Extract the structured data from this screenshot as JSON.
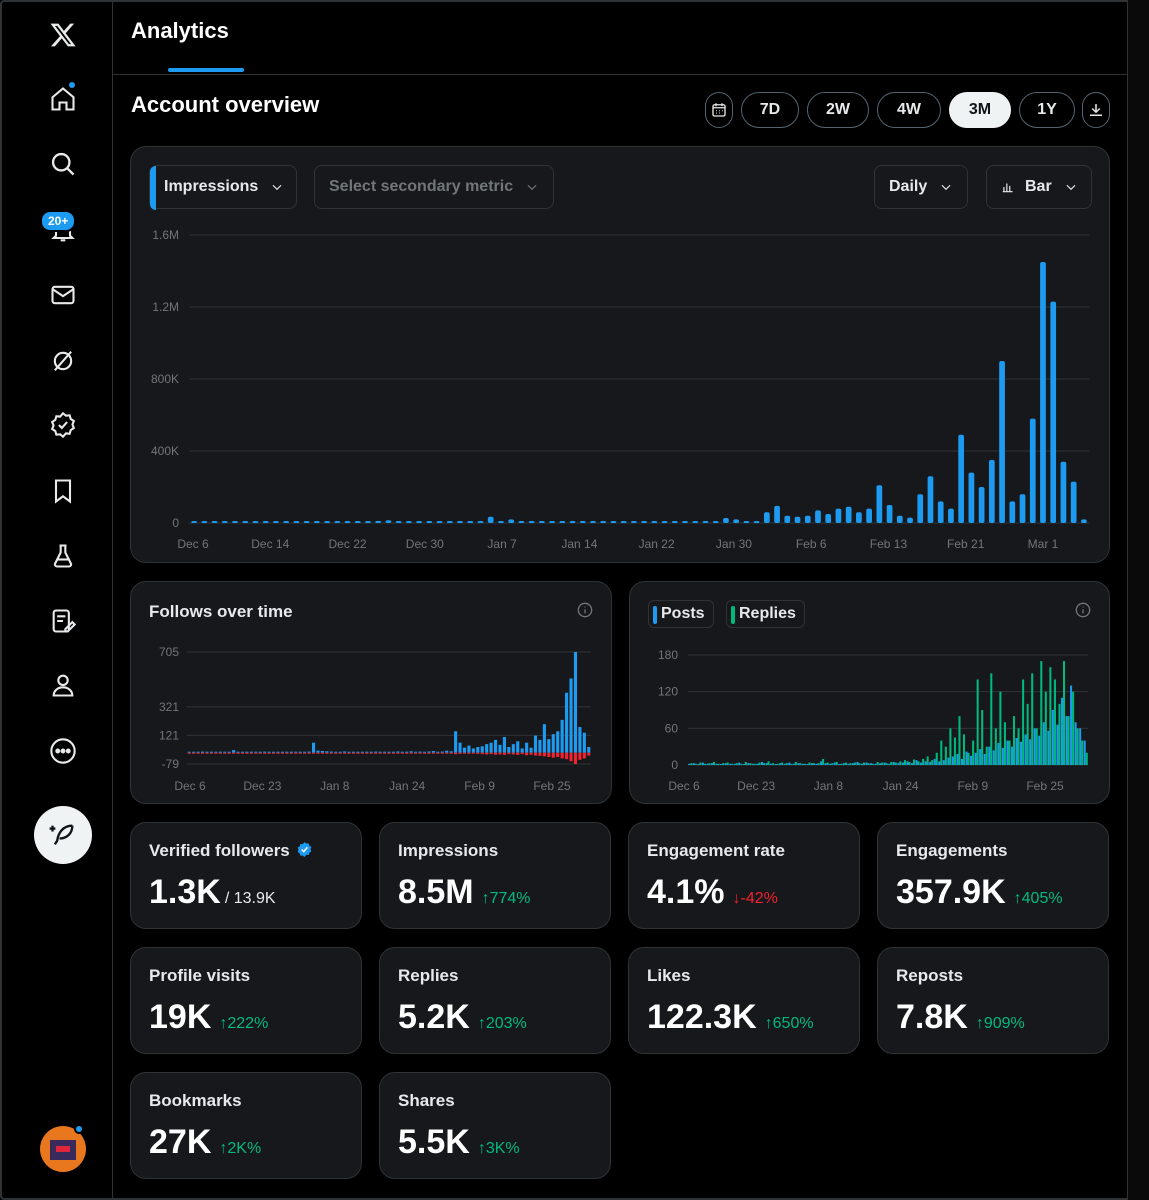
{
  "app": {
    "logo": "X"
  },
  "header": {
    "tab_active": "Analytics"
  },
  "sidebar": {
    "items": [
      {
        "name": "home-icon"
      },
      {
        "name": "search-icon"
      },
      {
        "name": "bell-icon"
      },
      {
        "name": "mail-icon"
      },
      {
        "name": "grok-icon"
      },
      {
        "name": "verified-icon"
      },
      {
        "name": "bookmark-icon"
      },
      {
        "name": "flask-icon"
      },
      {
        "name": "write-icon"
      },
      {
        "name": "profile-icon"
      },
      {
        "name": "more-icon"
      }
    ],
    "notifications_badge": "20+"
  },
  "overview": {
    "title": "Account overview",
    "ranges": [
      "7D",
      "2W",
      "4W",
      "3M",
      "1Y"
    ],
    "active_range": "3M"
  },
  "main_chart": {
    "primary_metric": "Impressions",
    "secondary_placeholder": "Select secondary metric",
    "granularity": "Daily",
    "chart_type_label": "Bar"
  },
  "follows_card": {
    "title": "Follows over time"
  },
  "posts_card": {
    "legend_posts": "Posts",
    "legend_replies": "Replies"
  },
  "stats": [
    {
      "label": "Verified followers",
      "value": "1.3K",
      "sub": "/ 13.9K",
      "change": "",
      "dir": ""
    },
    {
      "label": "Impressions",
      "value": "8.5M",
      "sub": "",
      "change": "774%",
      "dir": "up"
    },
    {
      "label": "Engagement rate",
      "value": "4.1%",
      "sub": "",
      "change": "-42%",
      "dir": "down"
    },
    {
      "label": "Engagements",
      "value": "357.9K",
      "sub": "",
      "change": "405%",
      "dir": "up"
    },
    {
      "label": "Profile visits",
      "value": "19K",
      "sub": "",
      "change": "222%",
      "dir": "up"
    },
    {
      "label": "Replies",
      "value": "5.2K",
      "sub": "",
      "change": "203%",
      "dir": "up"
    },
    {
      "label": "Likes",
      "value": "122.3K",
      "sub": "",
      "change": "650%",
      "dir": "up"
    },
    {
      "label": "Reposts",
      "value": "7.8K",
      "sub": "",
      "change": "909%",
      "dir": "up"
    },
    {
      "label": "Bookmarks",
      "value": "27K",
      "sub": "",
      "change": "2K%",
      "dir": "up"
    },
    {
      "label": "Shares",
      "value": "5.5K",
      "sub": "",
      "change": "3K%",
      "dir": "up"
    }
  ],
  "colors": {
    "accent": "#1d9bf0",
    "green": "#00ba7c",
    "red": "#f4212e",
    "card": "#16181c"
  },
  "chart_data": [
    {
      "type": "bar",
      "title": "Impressions",
      "yticks": [
        "0",
        "400K",
        "800K",
        "1.2M",
        "1.6M"
      ],
      "ylim": [
        0,
        1600000
      ],
      "xticks": [
        "Dec 6",
        "Dec 14",
        "Dec 22",
        "Dec 30",
        "Jan 7",
        "Jan 14",
        "Jan 22",
        "Jan 30",
        "Feb 6",
        "Feb 13",
        "Feb 21",
        "Mar 1"
      ],
      "values": [
        5000,
        8000,
        6000,
        9000,
        5000,
        7000,
        6000,
        5000,
        8000,
        6000,
        7000,
        5000,
        9000,
        6000,
        5000,
        7000,
        8000,
        6000,
        12000,
        15000,
        10000,
        8000,
        6000,
        5000,
        7000,
        6000,
        9000,
        5000,
        6000,
        35000,
        10000,
        20000,
        8000,
        6000,
        5000,
        7000,
        6000,
        5000,
        8000,
        6000,
        7000,
        5000,
        6000,
        5000,
        7000,
        6000,
        9000,
        5000,
        6000,
        8000,
        6000,
        7000,
        28000,
        20000,
        8000,
        10000,
        60000,
        95000,
        40000,
        35000,
        40000,
        70000,
        50000,
        80000,
        90000,
        60000,
        80000,
        210000,
        100000,
        40000,
        30000,
        160000,
        260000,
        120000,
        80000,
        490000,
        280000,
        200000,
        350000,
        900000,
        120000,
        160000,
        580000,
        1450000,
        1230000,
        340000,
        230000,
        20000
      ]
    },
    {
      "type": "bar",
      "title": "Follows over time",
      "yticks": [
        "-79",
        "121",
        "321",
        "705"
      ],
      "xticks": [
        "Dec 6",
        "Dec 23",
        "Jan 8",
        "Jan 24",
        "Feb 9",
        "Feb 25"
      ],
      "gains": [
        5,
        6,
        4,
        8,
        5,
        6,
        4,
        7,
        5,
        6,
        18,
        6,
        5,
        7,
        4,
        6,
        5,
        8,
        6,
        4,
        5,
        6,
        7,
        5,
        6,
        4,
        5,
        8,
        70,
        15,
        12,
        10,
        8,
        6,
        5,
        9,
        6,
        5,
        7,
        6,
        4,
        5,
        8,
        6,
        7,
        5,
        6,
        9,
        5,
        6,
        10,
        7,
        8,
        6,
        9,
        12,
        6,
        8,
        14,
        10,
        150,
        70,
        35,
        50,
        30,
        40,
        45,
        60,
        70,
        90,
        55,
        110,
        40,
        60,
        80,
        30,
        70,
        35,
        120,
        90,
        200,
        95,
        130,
        150,
        230,
        420,
        520,
        705,
        180,
        140,
        40
      ],
      "losses": [
        -3,
        -4,
        -3,
        -5,
        -4,
        -3,
        -4,
        -3,
        -5,
        -3,
        -4,
        -3,
        -4,
        -5,
        -3,
        -4,
        -3,
        -5,
        -4,
        -3,
        -4,
        -3,
        -5,
        -4,
        -3,
        -4,
        -3,
        -5,
        -4,
        -3,
        -4,
        -3,
        -5,
        -4,
        -3,
        -4,
        -3,
        -5,
        -4,
        -3,
        -4,
        -3,
        -5,
        -4,
        -3,
        -4,
        -3,
        -5,
        -4,
        -3,
        -4,
        -3,
        -5,
        -4,
        -3,
        -4,
        -3,
        -5,
        -4,
        -3,
        -10,
        -8,
        -6,
        -8,
        -6,
        -8,
        -10,
        -12,
        -10,
        -14,
        -12,
        -15,
        -10,
        -12,
        -15,
        -10,
        -18,
        -14,
        -20,
        -22,
        -25,
        -30,
        -35,
        -30,
        -40,
        -45,
        -60,
        -79,
        -50,
        -40,
        -20
      ]
    },
    {
      "type": "bar",
      "title": "Posts and Replies",
      "yticks": [
        "0",
        "60",
        "120",
        "180"
      ],
      "xticks": [
        "Dec 6",
        "Dec 23",
        "Jan 8",
        "Jan 24",
        "Feb 9",
        "Feb 25"
      ],
      "series": [
        {
          "name": "Posts",
          "values": [
            2,
            3,
            1,
            4,
            2,
            3,
            2,
            1,
            3,
            2,
            2,
            4,
            1,
            3,
            2,
            2,
            5,
            3,
            2,
            1,
            3,
            2,
            4,
            2,
            3,
            2,
            1,
            3,
            2,
            6,
            3,
            2,
            4,
            1,
            3,
            2,
            3,
            5,
            2,
            4,
            3,
            2,
            3,
            4,
            2,
            5,
            3,
            4,
            6,
            3,
            8,
            4,
            6,
            5,
            10,
            6,
            8,
            12,
            14,
            18,
            10,
            22,
            15,
            20,
            26,
            18,
            30,
            24,
            36,
            28,
            40,
            30,
            44,
            38,
            50,
            42,
            60,
            48,
            70,
            56,
            90,
            66,
            110,
            80,
            130,
            70,
            60,
            40
          ]
        },
        {
          "name": "Replies",
          "values": [
            3,
            2,
            4,
            2,
            3,
            5,
            2,
            3,
            4,
            2,
            3,
            2,
            5,
            3,
            2,
            4,
            3,
            6,
            3,
            2,
            4,
            3,
            2,
            5,
            3,
            2,
            4,
            3,
            3,
            10,
            4,
            3,
            5,
            2,
            4,
            3,
            4,
            3,
            4,
            3,
            2,
            5,
            4,
            3,
            5,
            4,
            6,
            8,
            5,
            9,
            6,
            10,
            14,
            8,
            20,
            40,
            30,
            60,
            45,
            80,
            50,
            20,
            40,
            140,
            90,
            30,
            150,
            60,
            120,
            70,
            40,
            80,
            60,
            140,
            100,
            150,
            60,
            170,
            120,
            160,
            140,
            100,
            170,
            80,
            120,
            60,
            40,
            20
          ]
        }
      ]
    }
  ]
}
